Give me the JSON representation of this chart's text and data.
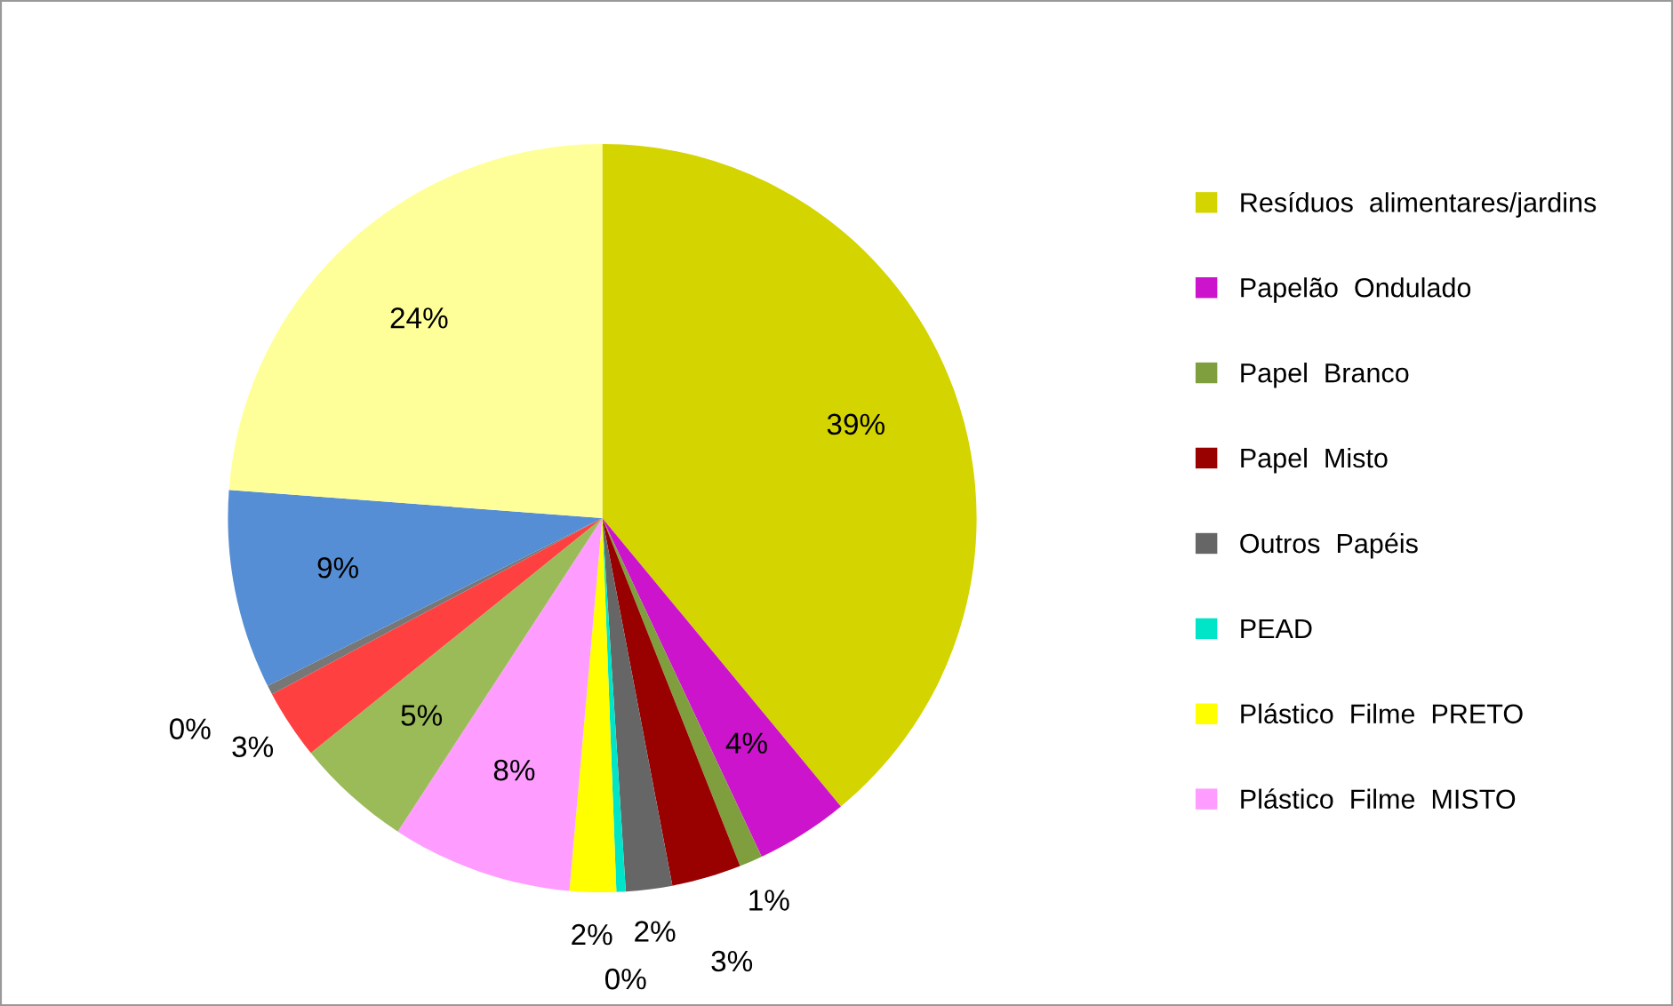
{
  "chart_data": {
    "type": "pie",
    "categories": [
      "Resíduos  alimentares/jardins",
      "Papelão  Ondulado",
      "Papel  Branco",
      "Papel  Misto",
      "Outros  Papéis",
      "PEAD",
      "Plástico  Filme  PRETO",
      "Plástico  Filme  MISTO",
      null,
      null,
      null,
      null,
      null
    ],
    "values": [
      39,
      4,
      1,
      3,
      2,
      0.4,
      2,
      7.8,
      5,
      3,
      0.4,
      8.6,
      23.8
    ],
    "value_labels": [
      "39%",
      "4%",
      "1%",
      "3%",
      "2%",
      "0%",
      "2%",
      "8%",
      "5%",
      "3%",
      "0%",
      "9%",
      "24%"
    ],
    "colors": [
      "#d4d400",
      "#cc14cc",
      "#7f9f3f",
      "#990000",
      "#666666",
      "#00e5c8",
      "#ffff00",
      "#ff9cff",
      "#9bbb59",
      "#ff4040",
      "#777777",
      "#558ed5",
      "#ffff99"
    ],
    "legend": "right"
  }
}
